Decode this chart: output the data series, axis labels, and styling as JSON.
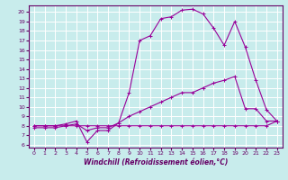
{
  "xlabel": "Windchill (Refroidissement éolien,°C)",
  "background_color": "#c8ecec",
  "grid_color": "#ffffff",
  "line_color": "#990099",
  "x_ticks": [
    0,
    1,
    2,
    3,
    4,
    5,
    6,
    7,
    8,
    9,
    10,
    11,
    12,
    13,
    14,
    15,
    16,
    17,
    18,
    19,
    20,
    21,
    22,
    23
  ],
  "y_ticks": [
    6,
    7,
    8,
    9,
    10,
    11,
    12,
    13,
    14,
    15,
    16,
    17,
    18,
    19,
    20
  ],
  "xlim": [
    -0.5,
    23.5
  ],
  "ylim": [
    5.7,
    20.7
  ],
  "line1_x": [
    0,
    1,
    2,
    3,
    4,
    5,
    6,
    7,
    8,
    9,
    10,
    11,
    12,
    13,
    14,
    15,
    16,
    17,
    18,
    19,
    20,
    21,
    22,
    23
  ],
  "line1_y": [
    8.0,
    8.0,
    8.0,
    8.0,
    8.0,
    8.0,
    8.0,
    8.0,
    8.0,
    8.0,
    8.0,
    8.0,
    8.0,
    8.0,
    8.0,
    8.0,
    8.0,
    8.0,
    8.0,
    8.0,
    8.0,
    8.0,
    8.0,
    8.5
  ],
  "line2_x": [
    0,
    1,
    2,
    3,
    4,
    5,
    6,
    7,
    8,
    9,
    10,
    11,
    12,
    13,
    14,
    15,
    16,
    17,
    18,
    19,
    20,
    21,
    22,
    23
  ],
  "line2_y": [
    7.8,
    7.8,
    7.8,
    8.0,
    8.2,
    7.5,
    7.8,
    7.8,
    8.3,
    9.0,
    9.5,
    10.0,
    10.5,
    11.0,
    11.5,
    11.5,
    12.0,
    12.5,
    12.8,
    13.2,
    9.8,
    9.8,
    8.5,
    8.5
  ],
  "line3_x": [
    0,
    1,
    2,
    3,
    4,
    5,
    6,
    7,
    8,
    9,
    10,
    11,
    12,
    13,
    14,
    15,
    16,
    17,
    18,
    19,
    20,
    21,
    22,
    23
  ],
  "line3_y": [
    8.0,
    8.0,
    8.0,
    8.2,
    8.5,
    6.3,
    7.5,
    7.5,
    8.3,
    11.5,
    17.0,
    17.5,
    19.3,
    19.5,
    20.2,
    20.3,
    19.8,
    18.3,
    16.5,
    19.0,
    16.3,
    12.8,
    9.7,
    8.5
  ],
  "spine_color": "#660066",
  "tick_color": "#660066",
  "xlabel_fontsize": 5.5,
  "tick_fontsize": 4.5,
  "marker_size": 3,
  "line_width": 0.8
}
